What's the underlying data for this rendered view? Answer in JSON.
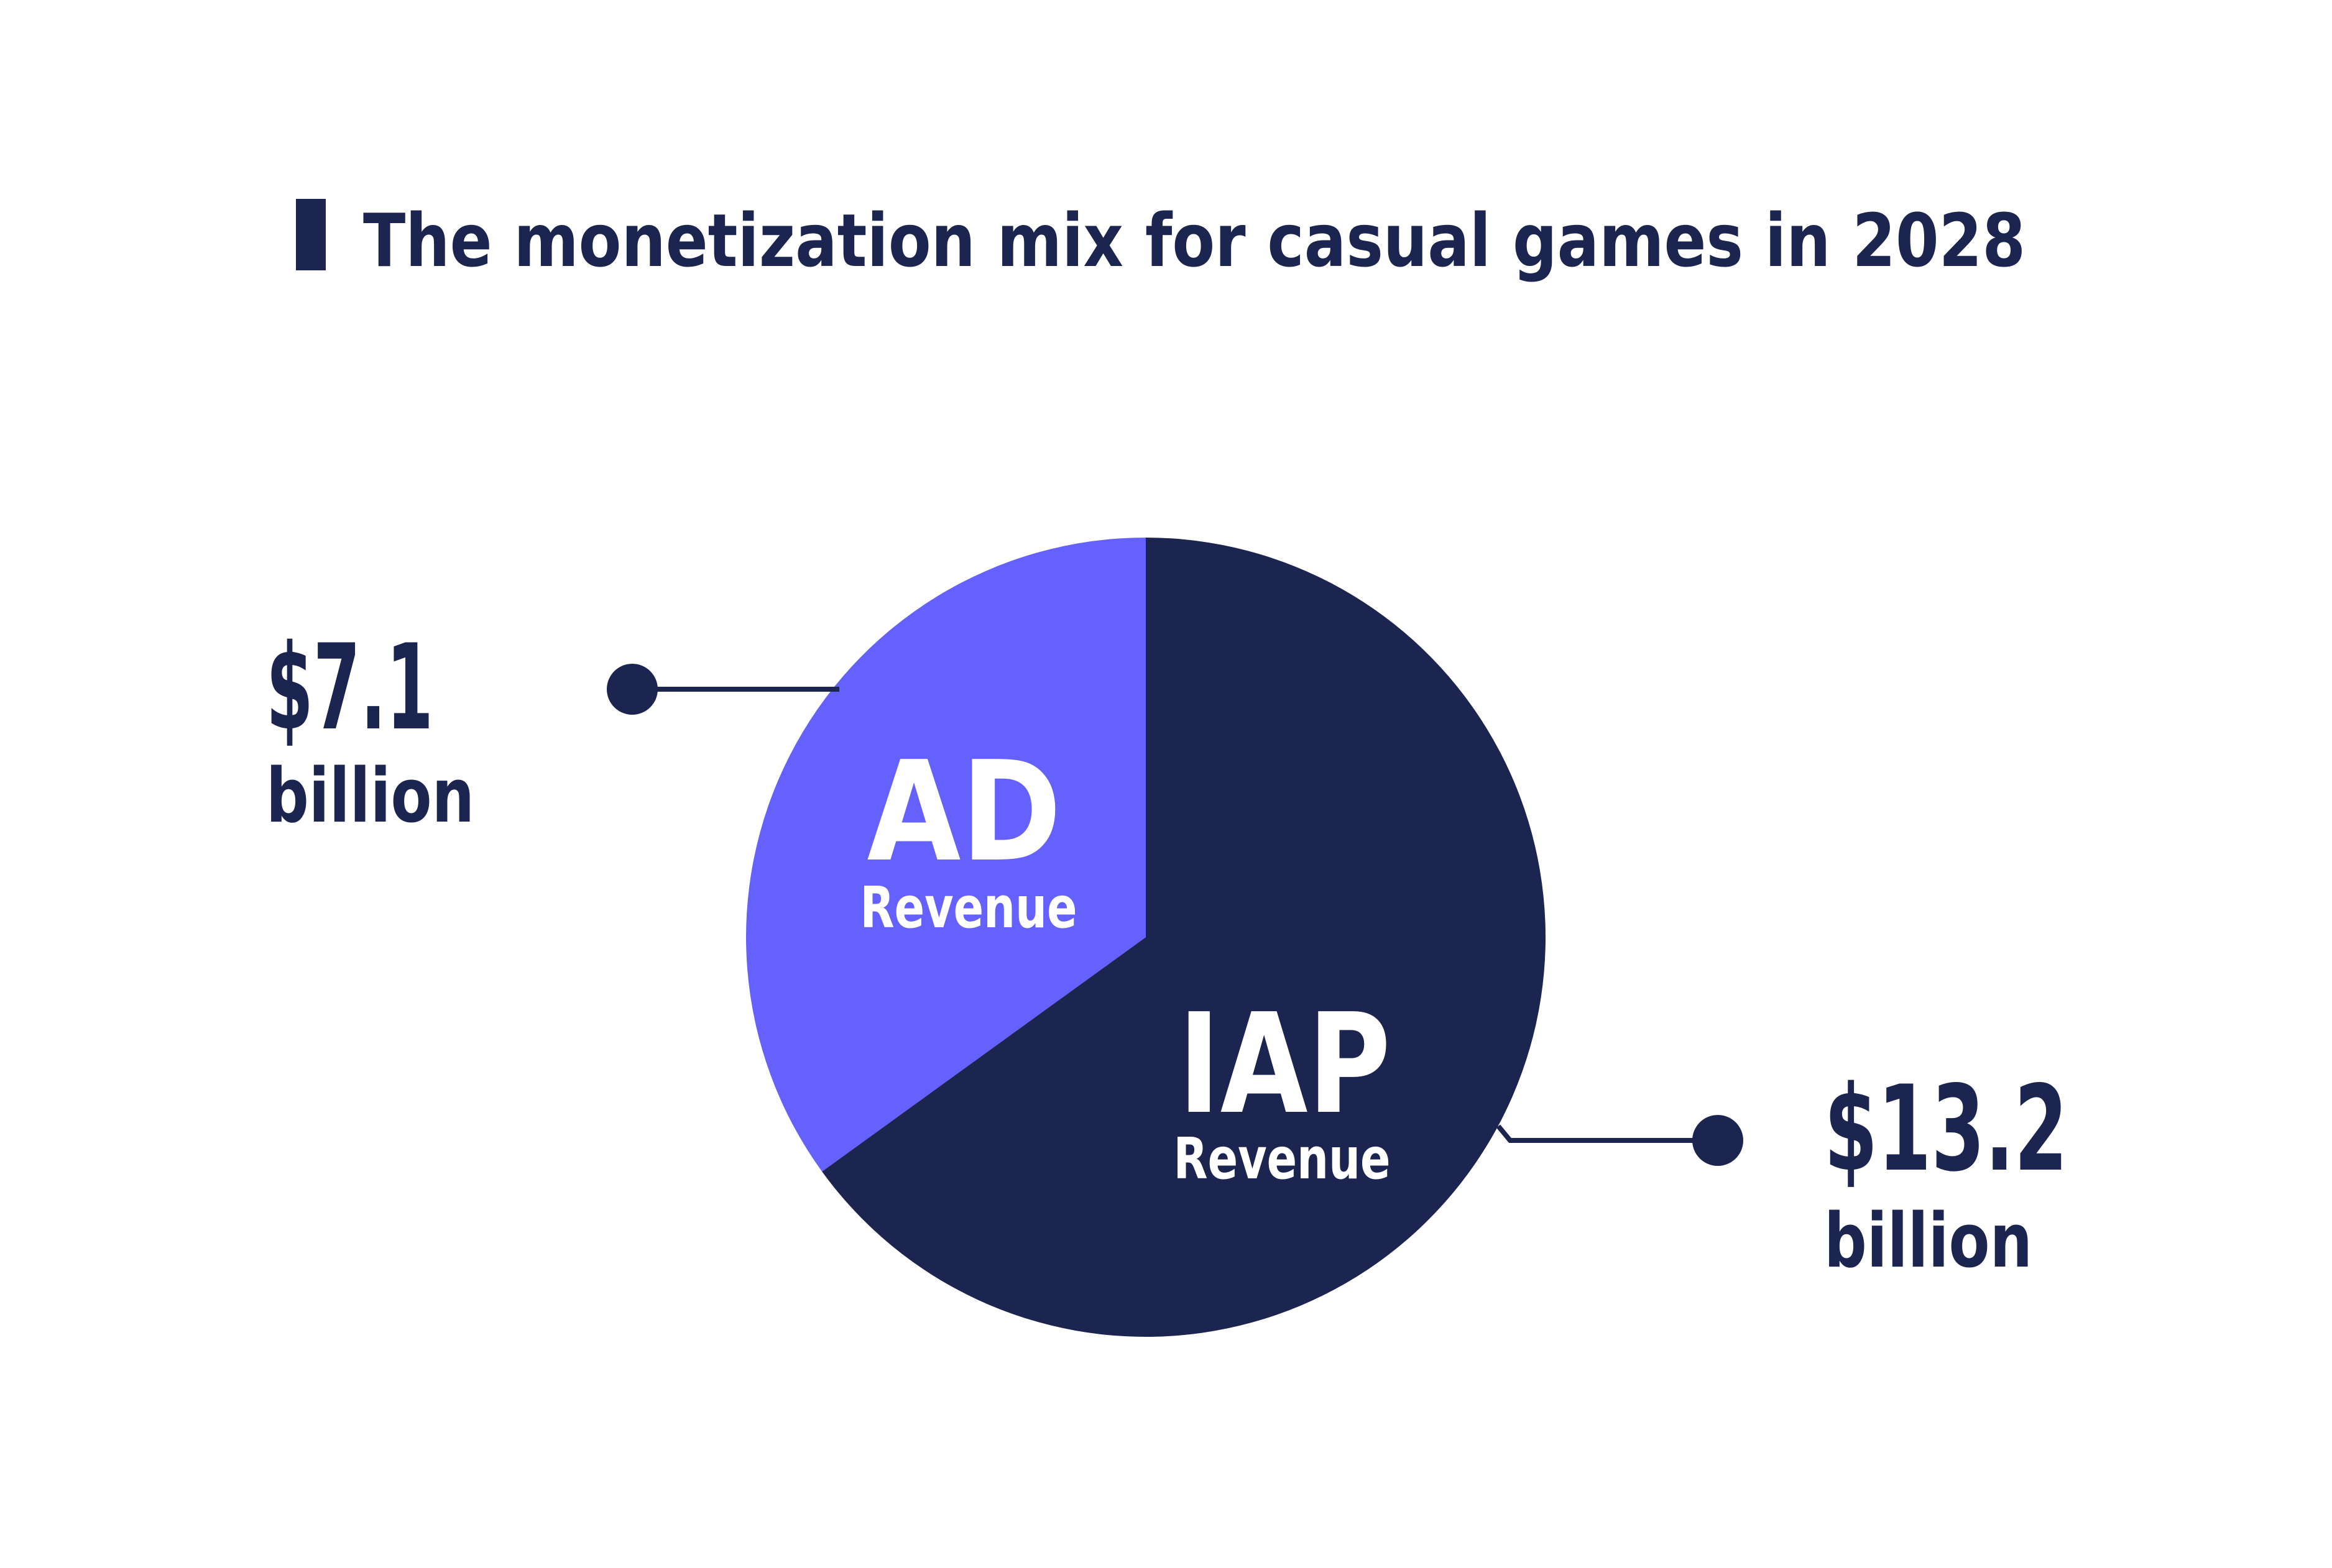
{
  "chart_data": {
    "type": "pie",
    "title": "The monetization mix for casual games in 2028",
    "slices": [
      {
        "label": "AD",
        "sublabel": "Revenue",
        "value": 7.1,
        "value_label": "$7.1",
        "unit_label": "billion",
        "color": "#6461ff"
      },
      {
        "label": "IAP",
        "sublabel": "Revenue",
        "value": 13.2,
        "value_label": "$13.2",
        "unit_label": "billion",
        "color": "#1c2450"
      }
    ],
    "start": "top",
    "direction": "ad-counterclockwise",
    "legend": "none"
  },
  "colors": {
    "text": "#1c2450",
    "accent": "#6461ff",
    "label_on_slice": "#ffffff"
  }
}
